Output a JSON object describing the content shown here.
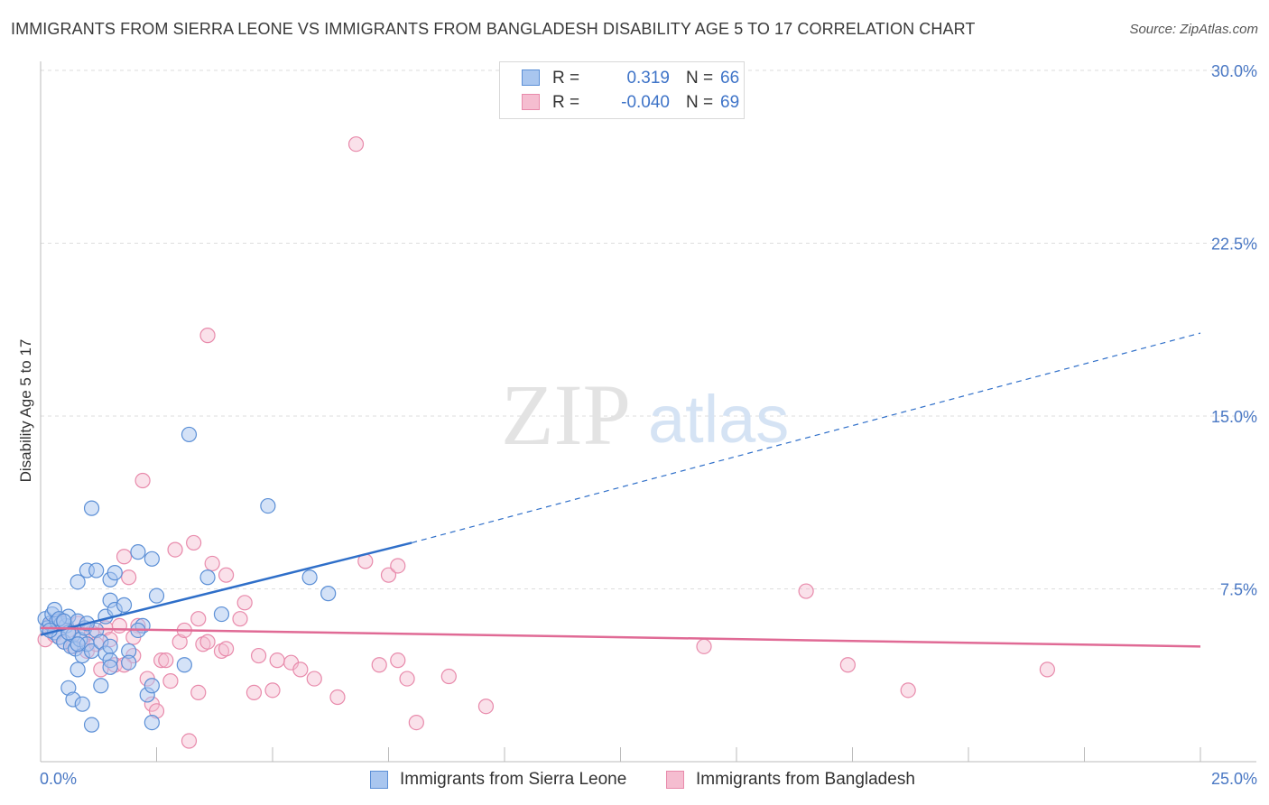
{
  "title": "IMMIGRANTS FROM SIERRA LEONE VS IMMIGRANTS FROM BANGLADESH DISABILITY AGE 5 TO 17 CORRELATION CHART",
  "source": "Source: ZipAtlas.com",
  "watermark": {
    "zip": "ZIP",
    "atlas": "atlas"
  },
  "colors": {
    "blue_fill": "#a9c6ef",
    "blue_stroke": "#5b8fd6",
    "blue_line": "#2f6fc9",
    "pink_fill": "#f5bdd0",
    "pink_stroke": "#e88aab",
    "pink_line": "#e06a95",
    "tick_text": "#4a78c4",
    "grid": "#dddddd"
  },
  "legend": {
    "rows": [
      {
        "label": "R =",
        "r_value": "0.319",
        "n_label": "N =",
        "n_value": "66"
      },
      {
        "label": "R =",
        "r_value": "-0.040",
        "n_label": "N =",
        "n_value": "69"
      }
    ]
  },
  "bottom_legend": {
    "series_a": "Immigrants from Sierra Leone",
    "series_b": "Immigrants from Bangladesh"
  },
  "chart_data": {
    "type": "scatter",
    "title": "IMMIGRANTS FROM SIERRA LEONE VS IMMIGRANTS FROM BANGLADESH DISABILITY AGE 5 TO 17 CORRELATION CHART",
    "xlabel": "",
    "ylabel": "Disability Age 5 to 17",
    "xlim": [
      0,
      25
    ],
    "ylim": [
      0,
      30
    ],
    "x_tick_labels": [
      "0.0%",
      "25.0%"
    ],
    "y_ticks": [
      7.5,
      15.0,
      22.5,
      30.0
    ],
    "y_tick_labels": [
      "7.5%",
      "15.0%",
      "22.5%",
      "30.0%"
    ],
    "grid": true,
    "legend_position": "top-center",
    "series": [
      {
        "name": "Immigrants from Sierra Leone",
        "R": 0.319,
        "N": 66,
        "trend": {
          "x0": 0,
          "y0": 5.5,
          "x1": 8.0,
          "y1": 9.5,
          "dashed_to_x": 25,
          "dashed_to_y": 18.6
        },
        "points": [
          [
            0.1,
            6.2
          ],
          [
            0.15,
            5.8
          ],
          [
            0.2,
            6.0
          ],
          [
            0.25,
            6.4
          ],
          [
            0.3,
            5.6
          ],
          [
            0.35,
            6.1
          ],
          [
            0.4,
            5.4
          ],
          [
            0.45,
            6.0
          ],
          [
            0.5,
            5.2
          ],
          [
            0.55,
            5.9
          ],
          [
            0.6,
            6.3
          ],
          [
            0.65,
            5.0
          ],
          [
            0.7,
            5.5
          ],
          [
            0.75,
            4.9
          ],
          [
            0.8,
            6.1
          ],
          [
            0.85,
            5.3
          ],
          [
            0.9,
            4.6
          ],
          [
            0.95,
            5.8
          ],
          [
            1.0,
            5.1
          ],
          [
            1.1,
            4.8
          ],
          [
            1.2,
            5.7
          ],
          [
            1.3,
            5.2
          ],
          [
            1.4,
            4.7
          ],
          [
            1.5,
            5.0
          ],
          [
            0.3,
            6.6
          ],
          [
            0.2,
            5.7
          ],
          [
            0.4,
            6.2
          ],
          [
            0.6,
            5.6
          ],
          [
            0.8,
            5.1
          ],
          [
            1.0,
            6.0
          ],
          [
            1.1,
            11.0
          ],
          [
            1.0,
            8.3
          ],
          [
            1.2,
            8.3
          ],
          [
            0.8,
            7.8
          ],
          [
            1.5,
            7.9
          ],
          [
            1.6,
            8.2
          ],
          [
            1.4,
            6.3
          ],
          [
            1.5,
            7.0
          ],
          [
            1.6,
            6.6
          ],
          [
            1.8,
            6.8
          ],
          [
            2.1,
            9.1
          ],
          [
            2.4,
            8.8
          ],
          [
            2.5,
            7.2
          ],
          [
            2.2,
            5.9
          ],
          [
            2.1,
            5.7
          ],
          [
            1.9,
            4.8
          ],
          [
            1.5,
            4.4
          ],
          [
            1.5,
            4.1
          ],
          [
            1.9,
            4.3
          ],
          [
            0.8,
            4.0
          ],
          [
            0.6,
            3.2
          ],
          [
            0.7,
            2.7
          ],
          [
            0.9,
            2.5
          ],
          [
            1.3,
            3.3
          ],
          [
            1.1,
            1.6
          ],
          [
            2.3,
            2.9
          ],
          [
            2.4,
            3.3
          ],
          [
            2.4,
            1.7
          ],
          [
            3.1,
            4.2
          ],
          [
            3.6,
            8.0
          ],
          [
            3.9,
            6.4
          ],
          [
            3.2,
            14.2
          ],
          [
            4.9,
            11.1
          ],
          [
            5.8,
            8.0
          ],
          [
            6.2,
            7.3
          ],
          [
            0.5,
            6.1
          ]
        ]
      },
      {
        "name": "Immigrants from Bangladesh",
        "R": -0.04,
        "N": 69,
        "trend": {
          "x0": 0,
          "y0": 5.8,
          "x1": 25,
          "y1": 5.0
        },
        "points": [
          [
            0.1,
            5.3
          ],
          [
            0.2,
            5.9
          ],
          [
            0.3,
            5.5
          ],
          [
            0.4,
            6.1
          ],
          [
            0.5,
            5.2
          ],
          [
            0.6,
            5.7
          ],
          [
            0.7,
            5.0
          ],
          [
            0.8,
            6.0
          ],
          [
            0.9,
            5.4
          ],
          [
            1.0,
            4.8
          ],
          [
            1.1,
            5.6
          ],
          [
            1.2,
            5.1
          ],
          [
            1.3,
            4.0
          ],
          [
            1.4,
            5.8
          ],
          [
            1.5,
            5.3
          ],
          [
            1.6,
            4.2
          ],
          [
            1.7,
            5.9
          ],
          [
            1.8,
            8.9
          ],
          [
            1.9,
            8.0
          ],
          [
            2.0,
            4.6
          ],
          [
            2.1,
            5.9
          ],
          [
            2.2,
            12.2
          ],
          [
            2.3,
            3.6
          ],
          [
            2.4,
            2.5
          ],
          [
            2.5,
            2.2
          ],
          [
            2.6,
            4.4
          ],
          [
            2.7,
            4.4
          ],
          [
            2.8,
            3.5
          ],
          [
            2.9,
            9.2
          ],
          [
            3.0,
            5.2
          ],
          [
            3.1,
            5.7
          ],
          [
            3.3,
            9.5
          ],
          [
            3.2,
            0.9
          ],
          [
            3.4,
            6.2
          ],
          [
            3.5,
            5.1
          ],
          [
            3.6,
            5.2
          ],
          [
            3.9,
            4.8
          ],
          [
            3.7,
            8.6
          ],
          [
            3.4,
            3.0
          ],
          [
            4.0,
            8.1
          ],
          [
            3.6,
            18.5
          ],
          [
            4.3,
            6.2
          ],
          [
            4.4,
            6.9
          ],
          [
            4.6,
            3.0
          ],
          [
            4.7,
            4.6
          ],
          [
            5.4,
            4.3
          ],
          [
            5.6,
            4.0
          ],
          [
            5.9,
            3.6
          ],
          [
            6.4,
            2.8
          ],
          [
            6.8,
            26.8
          ],
          [
            7.0,
            8.7
          ],
          [
            7.5,
            8.1
          ],
          [
            7.7,
            8.5
          ],
          [
            7.7,
            4.4
          ],
          [
            7.9,
            3.6
          ],
          [
            8.1,
            1.7
          ],
          [
            8.8,
            3.7
          ],
          [
            9.6,
            2.4
          ],
          [
            14.3,
            5.0
          ],
          [
            16.5,
            7.4
          ],
          [
            17.4,
            4.2
          ],
          [
            18.7,
            3.1
          ],
          [
            21.7,
            4.0
          ],
          [
            1.8,
            4.2
          ],
          [
            2.0,
            5.4
          ],
          [
            4.0,
            4.9
          ],
          [
            5.1,
            4.4
          ],
          [
            5.0,
            3.1
          ],
          [
            7.3,
            4.2
          ]
        ]
      }
    ]
  }
}
